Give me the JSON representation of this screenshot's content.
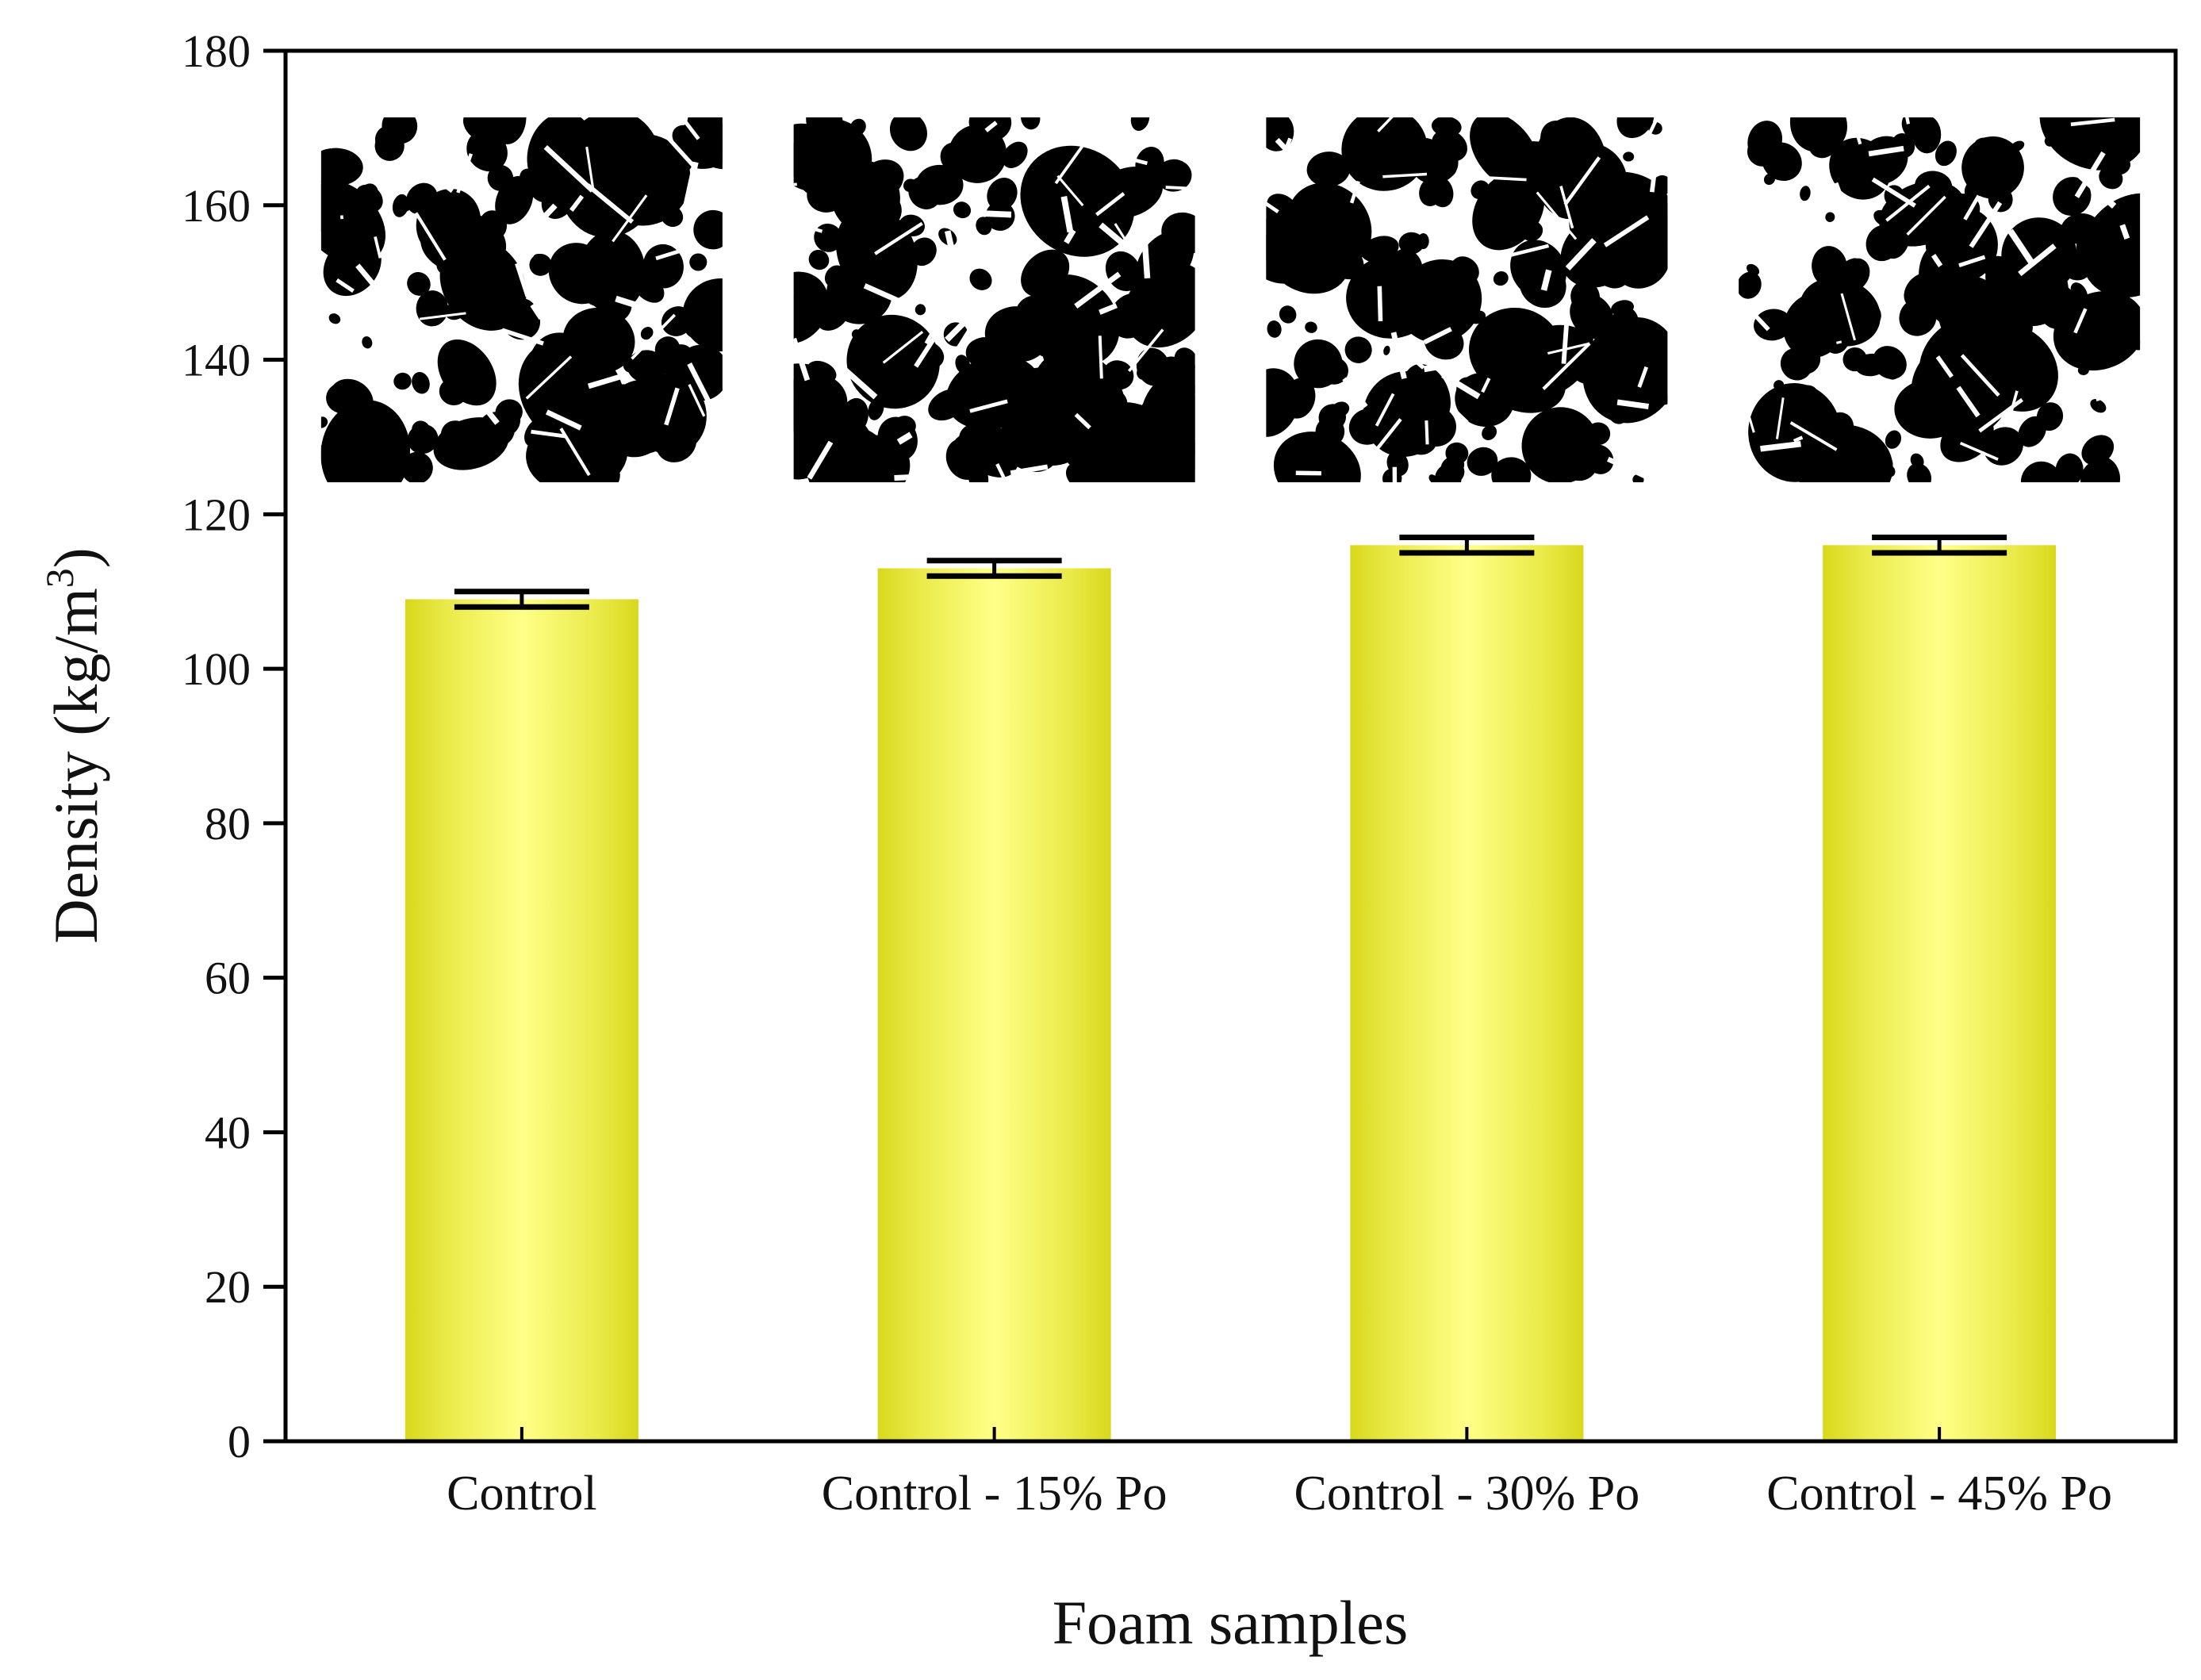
{
  "chart_data": {
    "type": "bar",
    "xlabel": "Foam samples",
    "ylabel": "Density (kg/m3)",
    "ylabel_parts": {
      "main": "Density (kg/m",
      "superscript": "3",
      "closing": ")"
    },
    "ylim": [
      0,
      180
    ],
    "yticks": [
      0,
      20,
      40,
      60,
      80,
      100,
      120,
      140,
      160,
      180
    ],
    "categories": [
      "Control",
      "Control - 15% Po",
      "Control - 30% Po",
      "Control - 45% Po"
    ],
    "values": [
      109,
      113,
      116,
      116
    ],
    "errors": [
      1,
      1,
      1,
      1
    ],
    "bar_color": "#f2f266",
    "bar_edge_color": "#d9d91a",
    "grid": false,
    "legend": "none",
    "insets": [
      {
        "category": "Control",
        "content": "foam-microstructure-image"
      },
      {
        "category": "Control - 15% Po",
        "content": "foam-microstructure-image"
      },
      {
        "category": "Control - 30% Po",
        "content": "foam-microstructure-image"
      },
      {
        "category": "Control - 45% Po",
        "content": "foam-microstructure-image"
      }
    ]
  }
}
